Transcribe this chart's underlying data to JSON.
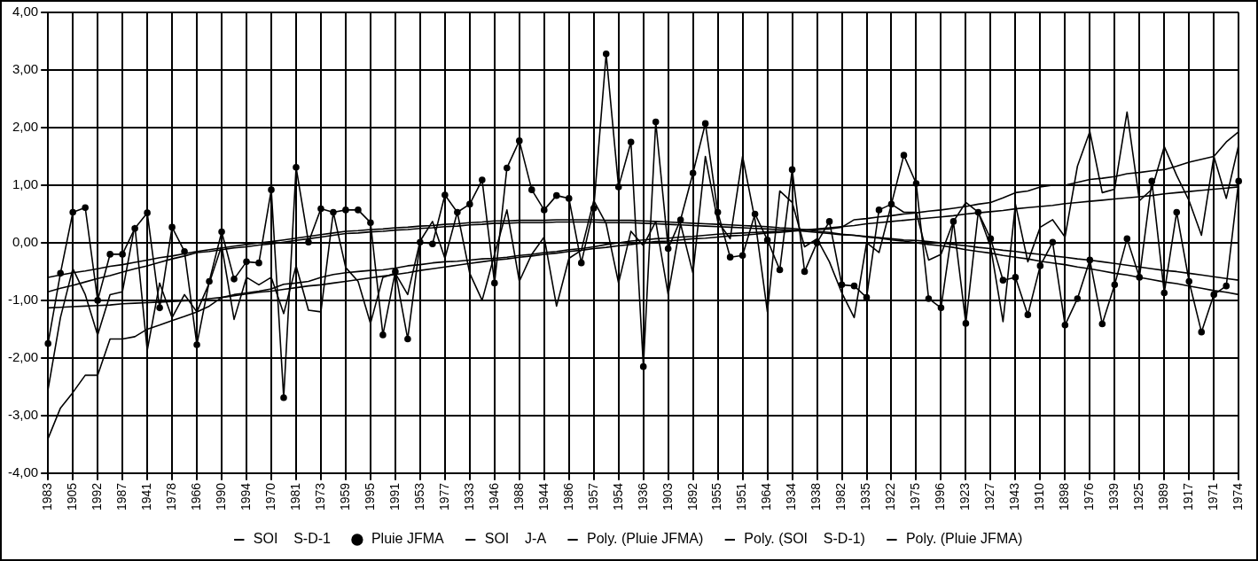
{
  "chart_data": {
    "type": "line",
    "categories": [
      "1983",
      null,
      "1905",
      null,
      "1992",
      null,
      "1987",
      null,
      "1941",
      null,
      "1978",
      null,
      "1966",
      null,
      "1990",
      null,
      "1994",
      null,
      "1970",
      null,
      "1981",
      null,
      "1973",
      null,
      "1959",
      null,
      "1995",
      null,
      "1991",
      null,
      "1953",
      null,
      "1977",
      null,
      "1933",
      null,
      "1946",
      null,
      "1988",
      null,
      "1944",
      null,
      "1986",
      null,
      "1957",
      null,
      "1954",
      null,
      "1936",
      null,
      "1903",
      null,
      "1892",
      null,
      "1955",
      null,
      "1951",
      null,
      "1964",
      null,
      "1934",
      null,
      "1938",
      null,
      "1982",
      null,
      "1935",
      null,
      "1922",
      null,
      "1975",
      null,
      "1996",
      null,
      "1923",
      null,
      "1927",
      null,
      "1943",
      null,
      "1910",
      null,
      "1898",
      null,
      "1976",
      null,
      "1939",
      null,
      "1925",
      null,
      "1989",
      null,
      "1917",
      null,
      "1971",
      null,
      "1974"
    ],
    "series": [
      {
        "name": "SOI    S-D-1",
        "color": "#000000",
        "values": [
          -2.55,
          -1.3,
          -0.45,
          -0.9,
          -1.6,
          -0.9,
          -0.85,
          0.3,
          -1.87,
          -0.7,
          -1.3,
          -0.9,
          -1.2,
          -0.7,
          -0.05,
          -1.33,
          -0.6,
          -0.73,
          -0.6,
          -1.23,
          -0.4,
          -1.17,
          -1.2,
          0.53,
          -0.43,
          -0.67,
          -1.4,
          -0.6,
          -0.53,
          -0.9,
          0.03,
          0.37,
          -0.27,
          0.53,
          -0.53,
          -1.0,
          -0.2,
          0.57,
          -0.67,
          -0.2,
          0.1,
          -1.1,
          -0.27,
          -0.13,
          0.73,
          0.33,
          -0.7,
          0.2,
          -0.05,
          0.37,
          -0.9,
          0.33,
          -0.53,
          1.5,
          0.37,
          0.07,
          1.5,
          0.4,
          -1.2,
          0.9,
          0.7,
          -0.07,
          0.07,
          -0.33,
          -0.87,
          -1.3,
          0,
          -0.17,
          0.67,
          0.53,
          0.53,
          -0.3,
          -0.2,
          0.37,
          0.7,
          0.53,
          -0.07,
          -1.37,
          0.67,
          -0.33,
          0.27,
          0.4,
          0.1,
          1.33,
          1.93,
          0.87,
          0.93,
          2.27,
          0.73,
          0.93,
          1.67,
          1.17,
          0.73,
          0.13,
          1.5,
          0.77,
          1.7
        ]
      },
      {
        "name": "Pluie JFMA",
        "color": "#000000",
        "marker": "circle",
        "values": [
          -1.75,
          -0.53,
          0.53,
          0.61,
          -1.0,
          -0.2,
          -0.2,
          0.25,
          0.52,
          -1.13,
          0.27,
          -0.15,
          -1.77,
          -0.67,
          0.19,
          -0.63,
          -0.33,
          -0.35,
          0.92,
          -2.69,
          1.31,
          0.01,
          0.59,
          0.53,
          0.57,
          0.57,
          0.35,
          -1.6,
          -0.5,
          -1.67,
          0.01,
          -0.02,
          0.83,
          0.53,
          0.67,
          1.09,
          -0.7,
          1.3,
          1.77,
          0.92,
          0.57,
          0.82,
          0.77,
          -0.35,
          0.6,
          3.28,
          0.97,
          1.75,
          -2.15,
          2.1,
          -0.1,
          0.4,
          1.21,
          2.07,
          0.53,
          -0.25,
          -0.22,
          0.5,
          0.05,
          -0.47,
          1.27,
          -0.5,
          0,
          0.37,
          -0.73,
          -0.75,
          -0.95,
          0.57,
          0.67,
          1.52,
          1.03,
          -0.97,
          -1.13,
          0.37,
          -1.4,
          0.53,
          0.07,
          -0.65,
          -0.6,
          -1.25,
          -0.4,
          0.01,
          -1.43,
          -0.97,
          -0.3,
          -1.41,
          -0.73,
          0.07,
          -0.6,
          1.07,
          -0.87,
          0.53,
          -0.67,
          -1.55,
          -0.9,
          -0.75,
          1.07
        ]
      },
      {
        "name": "SOI    J-A",
        "color": "#000000",
        "values": [
          -3.4,
          -2.87,
          -2.6,
          -2.3,
          -2.3,
          -1.67,
          -1.67,
          -1.63,
          -1.5,
          -1.43,
          -1.35,
          -1.28,
          -1.2,
          -1.1,
          -0.95,
          -0.9,
          -0.87,
          -0.84,
          -0.8,
          -0.72,
          -0.7,
          -0.67,
          -0.6,
          -0.55,
          -0.52,
          -0.5,
          -0.48,
          -0.47,
          -0.44,
          -0.4,
          -0.38,
          -0.35,
          -0.33,
          -0.32,
          -0.3,
          -0.28,
          -0.27,
          -0.25,
          -0.22,
          -0.2,
          -0.17,
          -0.15,
          -0.12,
          -0.1,
          -0.07,
          -0.03,
          0.0,
          0.03,
          0.05,
          0.07,
          0.08,
          0.1,
          0.11,
          0.13,
          0.15,
          0.16,
          0.17,
          0.18,
          0.19,
          0.2,
          0.21,
          0.22,
          0.23,
          0.24,
          0.27,
          0.4,
          0.42,
          0.45,
          0.47,
          0.5,
          0.52,
          0.55,
          0.57,
          0.6,
          0.63,
          0.67,
          0.7,
          0.78,
          0.87,
          0.9,
          0.97,
          1.0,
          1.0,
          1.05,
          1.1,
          1.12,
          1.15,
          1.2,
          1.22,
          1.25,
          1.27,
          1.33,
          1.4,
          1.45,
          1.5,
          1.75,
          1.93
        ]
      },
      {
        "name": "Poly. (Pluie JFMA)",
        "color": "#000000",
        "values": [
          -0.6,
          -0.56,
          -0.52,
          -0.49,
          -0.45,
          -0.41,
          -0.38,
          -0.34,
          -0.3,
          -0.26,
          -0.23,
          -0.19,
          -0.15,
          -0.12,
          -0.09,
          -0.06,
          -0.03,
          0.0,
          0.02,
          0.05,
          0.08,
          0.11,
          0.14,
          0.17,
          0.2,
          0.21,
          0.23,
          0.24,
          0.26,
          0.27,
          0.29,
          0.3,
          0.32,
          0.33,
          0.35,
          0.36,
          0.38,
          0.38,
          0.39,
          0.39,
          0.39,
          0.4,
          0.4,
          0.4,
          0.4,
          0.39,
          0.39,
          0.39,
          0.38,
          0.37,
          0.36,
          0.35,
          0.34,
          0.33,
          0.32,
          0.31,
          0.3,
          0.29,
          0.28,
          0.26,
          0.25,
          0.23,
          0.2,
          0.18,
          0.15,
          0.13,
          0.1,
          0.08,
          0.05,
          0.03,
          0.0,
          -0.03,
          -0.05,
          -0.08,
          -0.12,
          -0.15,
          -0.18,
          -0.22,
          -0.25,
          -0.28,
          -0.32,
          -0.35,
          -0.38,
          -0.42,
          -0.45,
          -0.49,
          -0.53,
          -0.56,
          -0.6,
          -0.64,
          -0.68,
          -0.71,
          -0.75,
          -0.79,
          -0.83,
          -0.86,
          -0.9
        ]
      },
      {
        "name": "Poly. (SOI    S-D-1)",
        "color": "#000000",
        "values": [
          -1.13,
          -1.12,
          -1.11,
          -1.1,
          -1.09,
          -1.08,
          -1.06,
          -1.05,
          -1.04,
          -1.03,
          -1.02,
          -1.01,
          -1.0,
          -0.97,
          -0.95,
          -0.92,
          -0.89,
          -0.86,
          -0.84,
          -0.81,
          -0.78,
          -0.75,
          -0.73,
          -0.7,
          -0.67,
          -0.64,
          -0.61,
          -0.58,
          -0.55,
          -0.52,
          -0.48,
          -0.45,
          -0.42,
          -0.39,
          -0.36,
          -0.33,
          -0.3,
          -0.28,
          -0.25,
          -0.23,
          -0.2,
          -0.18,
          -0.15,
          -0.13,
          -0.1,
          -0.08,
          -0.05,
          -0.03,
          0.0,
          0.02,
          0.03,
          0.05,
          0.07,
          0.08,
          0.1,
          0.12,
          0.13,
          0.15,
          0.17,
          0.18,
          0.2,
          0.22,
          0.24,
          0.26,
          0.28,
          0.3,
          0.33,
          0.35,
          0.37,
          0.39,
          0.41,
          0.43,
          0.45,
          0.47,
          0.5,
          0.52,
          0.54,
          0.56,
          0.59,
          0.61,
          0.63,
          0.65,
          0.68,
          0.7,
          0.72,
          0.74,
          0.76,
          0.78,
          0.8,
          0.82,
          0.85,
          0.87,
          0.89,
          0.91,
          0.93,
          0.95,
          0.97
        ]
      },
      {
        "name": "Poly. (Pluie JFMA)",
        "color": "#000000",
        "values": [
          -0.85,
          -0.79,
          -0.74,
          -0.68,
          -0.62,
          -0.57,
          -0.51,
          -0.45,
          -0.4,
          -0.34,
          -0.28,
          -0.23,
          -0.17,
          -0.15,
          -0.12,
          -0.09,
          -0.07,
          -0.04,
          -0.02,
          0.01,
          0.04,
          0.07,
          0.1,
          0.13,
          0.16,
          0.17,
          0.19,
          0.2,
          0.22,
          0.23,
          0.25,
          0.26,
          0.28,
          0.29,
          0.31,
          0.32,
          0.34,
          0.34,
          0.35,
          0.35,
          0.35,
          0.36,
          0.36,
          0.36,
          0.36,
          0.35,
          0.35,
          0.35,
          0.34,
          0.33,
          0.32,
          0.31,
          0.3,
          0.29,
          0.28,
          0.27,
          0.26,
          0.25,
          0.24,
          0.23,
          0.22,
          0.2,
          0.18,
          0.16,
          0.14,
          0.13,
          0.11,
          0.09,
          0.07,
          0.05,
          0.04,
          0.02,
          0.0,
          -0.03,
          -0.05,
          -0.08,
          -0.1,
          -0.13,
          -0.15,
          -0.18,
          -0.2,
          -0.23,
          -0.25,
          -0.28,
          -0.3,
          -0.33,
          -0.36,
          -0.39,
          -0.42,
          -0.45,
          -0.48,
          -0.5,
          -0.53,
          -0.56,
          -0.59,
          -0.62,
          -0.65
        ]
      }
    ],
    "ylim": [
      -4,
      4
    ],
    "yticks": [
      {
        "value": -4,
        "label": "-4,00"
      },
      {
        "value": -3,
        "label": "-3,00"
      },
      {
        "value": -2,
        "label": "-2,00"
      },
      {
        "value": -1,
        "label": "-1,00"
      },
      {
        "value": 0,
        "label": "0,00"
      },
      {
        "value": 1,
        "label": "1,00"
      },
      {
        "value": 2,
        "label": "2,00"
      },
      {
        "value": 3,
        "label": "3,00"
      },
      {
        "value": 4,
        "label": "4,00"
      }
    ],
    "grid": true,
    "legend": "bottom",
    "marker": "none"
  }
}
